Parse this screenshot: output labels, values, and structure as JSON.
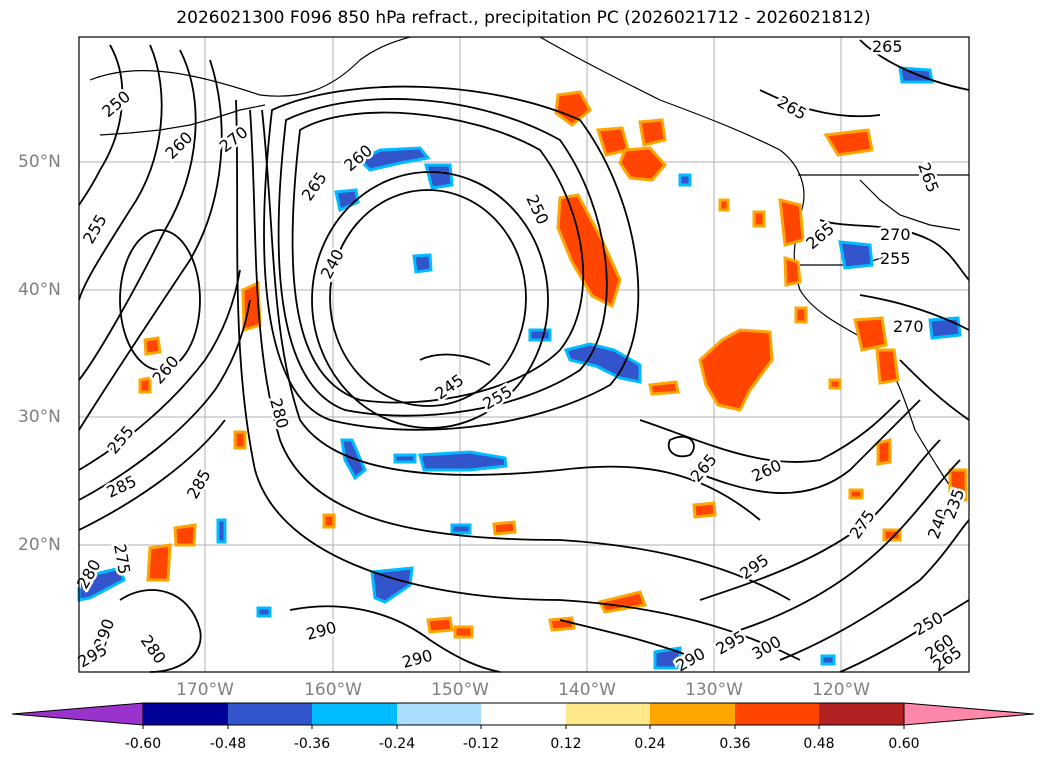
{
  "title": "2026021300 F096 850 hPa refract., precipitation PC (2026021712 - 2026021812)",
  "map": {
    "lat_labels": [
      "50°N",
      "40°N",
      "30°N",
      "20°N"
    ],
    "lon_labels": [
      "170°W",
      "160°W",
      "150°W",
      "140°W",
      "130°W",
      "120°W"
    ],
    "gridlines": true,
    "contour_labels": [
      "250",
      "260",
      "270",
      "255",
      "265",
      "260",
      "240",
      "250",
      "265",
      "245",
      "255",
      "280",
      "285",
      "260",
      "255",
      "285",
      "275",
      "280",
      "290",
      "295",
      "290",
      "290",
      "295",
      "300",
      "265",
      "260",
      "270",
      "275",
      "280",
      "250",
      "260",
      "265",
      "265",
      "270",
      "255",
      "235",
      "240",
      "265"
    ]
  },
  "colorbar": {
    "ticks": [
      "-0.60",
      "-0.48",
      "-0.36",
      "-0.24",
      "-0.12",
      "0.12",
      "0.24",
      "0.36",
      "0.48",
      "0.60"
    ],
    "colors": [
      "#9933cc",
      "#000099",
      "#3355cc",
      "#00bbff",
      "#aaddff",
      "#ffffff",
      "#ffe88a",
      "#ffa500",
      "#ff4500",
      "#b22222",
      "#ff88aa"
    ],
    "extend": "both"
  },
  "colors": {
    "positive_fill": "#ff4500",
    "positive_edge": "#ffa500",
    "negative_fill": "#3355cc",
    "negative_edge": "#00bbff",
    "contour": "#000000",
    "grid": "#b0b0b0",
    "axis_label": "#808080"
  }
}
